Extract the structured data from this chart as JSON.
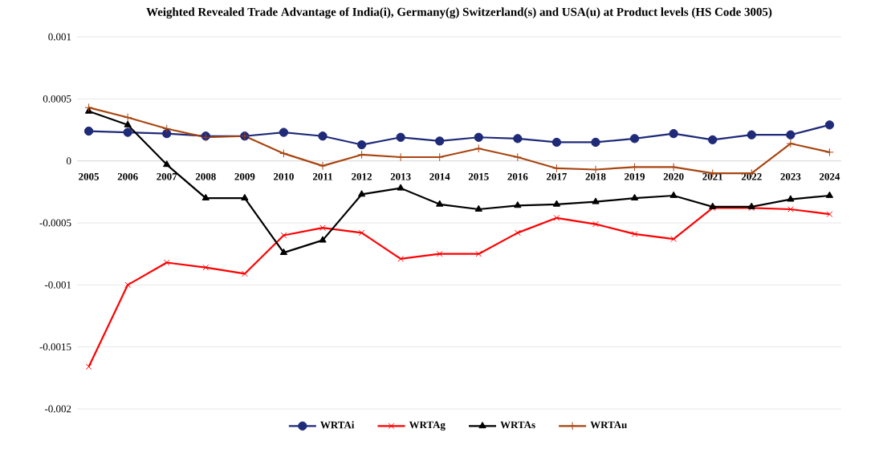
{
  "chart_data": {
    "type": "line",
    "title": "**Weighted Revealed Trade Advantage of India(i), Germany(g) Switzerland(s) and USA(u) at Product levels (HS Code 3005)**",
    "categories": [
      "2005",
      "2006",
      "2007",
      "2008",
      "2009",
      "2010",
      "2011",
      "2012",
      "2013",
      "2014",
      "2015",
      "2016",
      "2017",
      "2018",
      "2019",
      "2020",
      "2021",
      "2022",
      "2023",
      "2024"
    ],
    "series": [
      {
        "name": "WRTAi",
        "color": "#1f2a78",
        "marker": "circle",
        "values": [
          0.00024,
          0.00023,
          0.00022,
          0.0002,
          0.0002,
          0.00023,
          0.0002,
          0.00013,
          0.00019,
          0.00016,
          0.00019,
          0.00018,
          0.00015,
          0.00015,
          0.00018,
          0.00022,
          0.00017,
          0.00021,
          0.00021,
          0.00029
        ]
      },
      {
        "name": "WRTAg",
        "color": "#ff0000",
        "marker": "cross",
        "values": [
          -0.00166,
          -0.001,
          -0.00082,
          -0.00086,
          -0.00091,
          -0.0006,
          -0.00054,
          -0.00058,
          -0.00079,
          -0.00075,
          -0.00075,
          -0.00058,
          -0.00046,
          -0.00051,
          -0.00059,
          -0.00063,
          -0.00038,
          -0.00038,
          -0.00039,
          -0.00043
        ]
      },
      {
        "name": "WRTAs",
        "color": "#000000",
        "marker": "triangle",
        "values": [
          0.0004,
          0.00029,
          -3e-05,
          -0.0003,
          -0.0003,
          -0.00074,
          -0.00064,
          -0.00027,
          -0.00022,
          -0.00035,
          -0.00039,
          -0.00036,
          -0.00035,
          -0.00033,
          -0.0003,
          -0.00028,
          -0.00037,
          -0.00037,
          -0.00031,
          -0.00028
        ]
      },
      {
        "name": "WRTAu",
        "color": "#a84510",
        "marker": "plus",
        "values": [
          0.00043,
          0.00035,
          0.00026,
          0.00019,
          0.0002,
          6e-05,
          -4e-05,
          5e-05,
          3e-05,
          3e-05,
          0.0001,
          3e-05,
          -6e-05,
          -7e-05,
          -5e-05,
          -5e-05,
          -0.0001,
          -0.0001,
          0.00014,
          7e-05
        ]
      }
    ],
    "ylim": [
      -0.002,
      0.001
    ],
    "yticks": [
      0.001,
      0.0005,
      0,
      -0.0005,
      -0.001,
      -0.0015,
      -0.002
    ],
    "grid": "y",
    "legend": "bottom"
  }
}
